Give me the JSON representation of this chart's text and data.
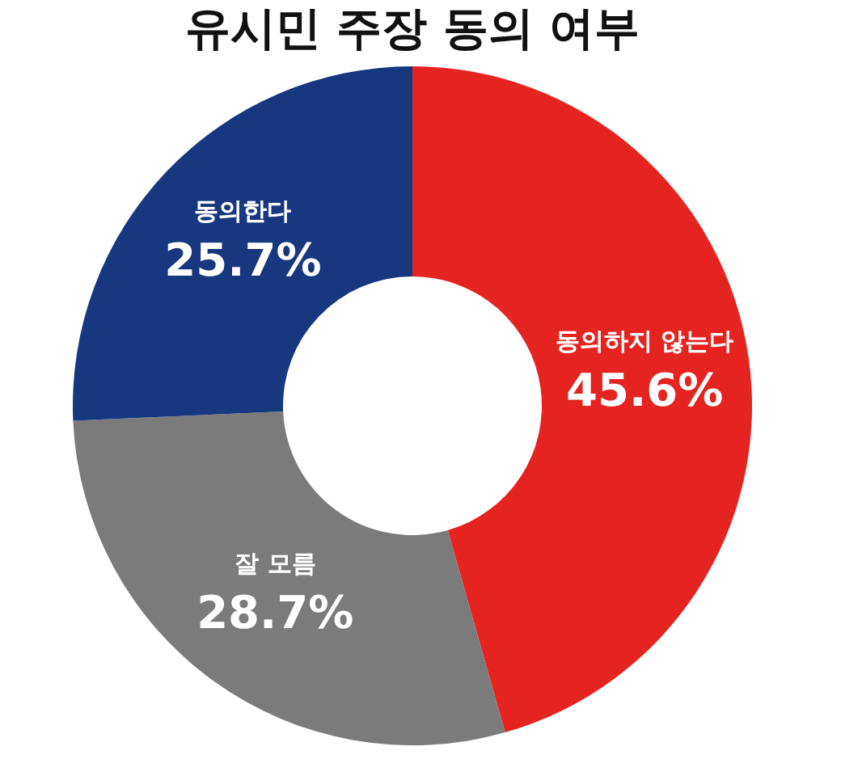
{
  "chart_data": {
    "type": "donut",
    "title": "유시민 주장 동의 여부",
    "categories": [
      "동의하지 않는다",
      "잘 모름",
      "동의한다"
    ],
    "values": [
      45.6,
      28.7,
      25.7
    ],
    "colors": [
      "#e52421",
      "#7b7b7b",
      "#17387f"
    ],
    "value_labels": [
      "45.6%",
      "28.7%",
      "25.7%"
    ],
    "legend": false
  }
}
